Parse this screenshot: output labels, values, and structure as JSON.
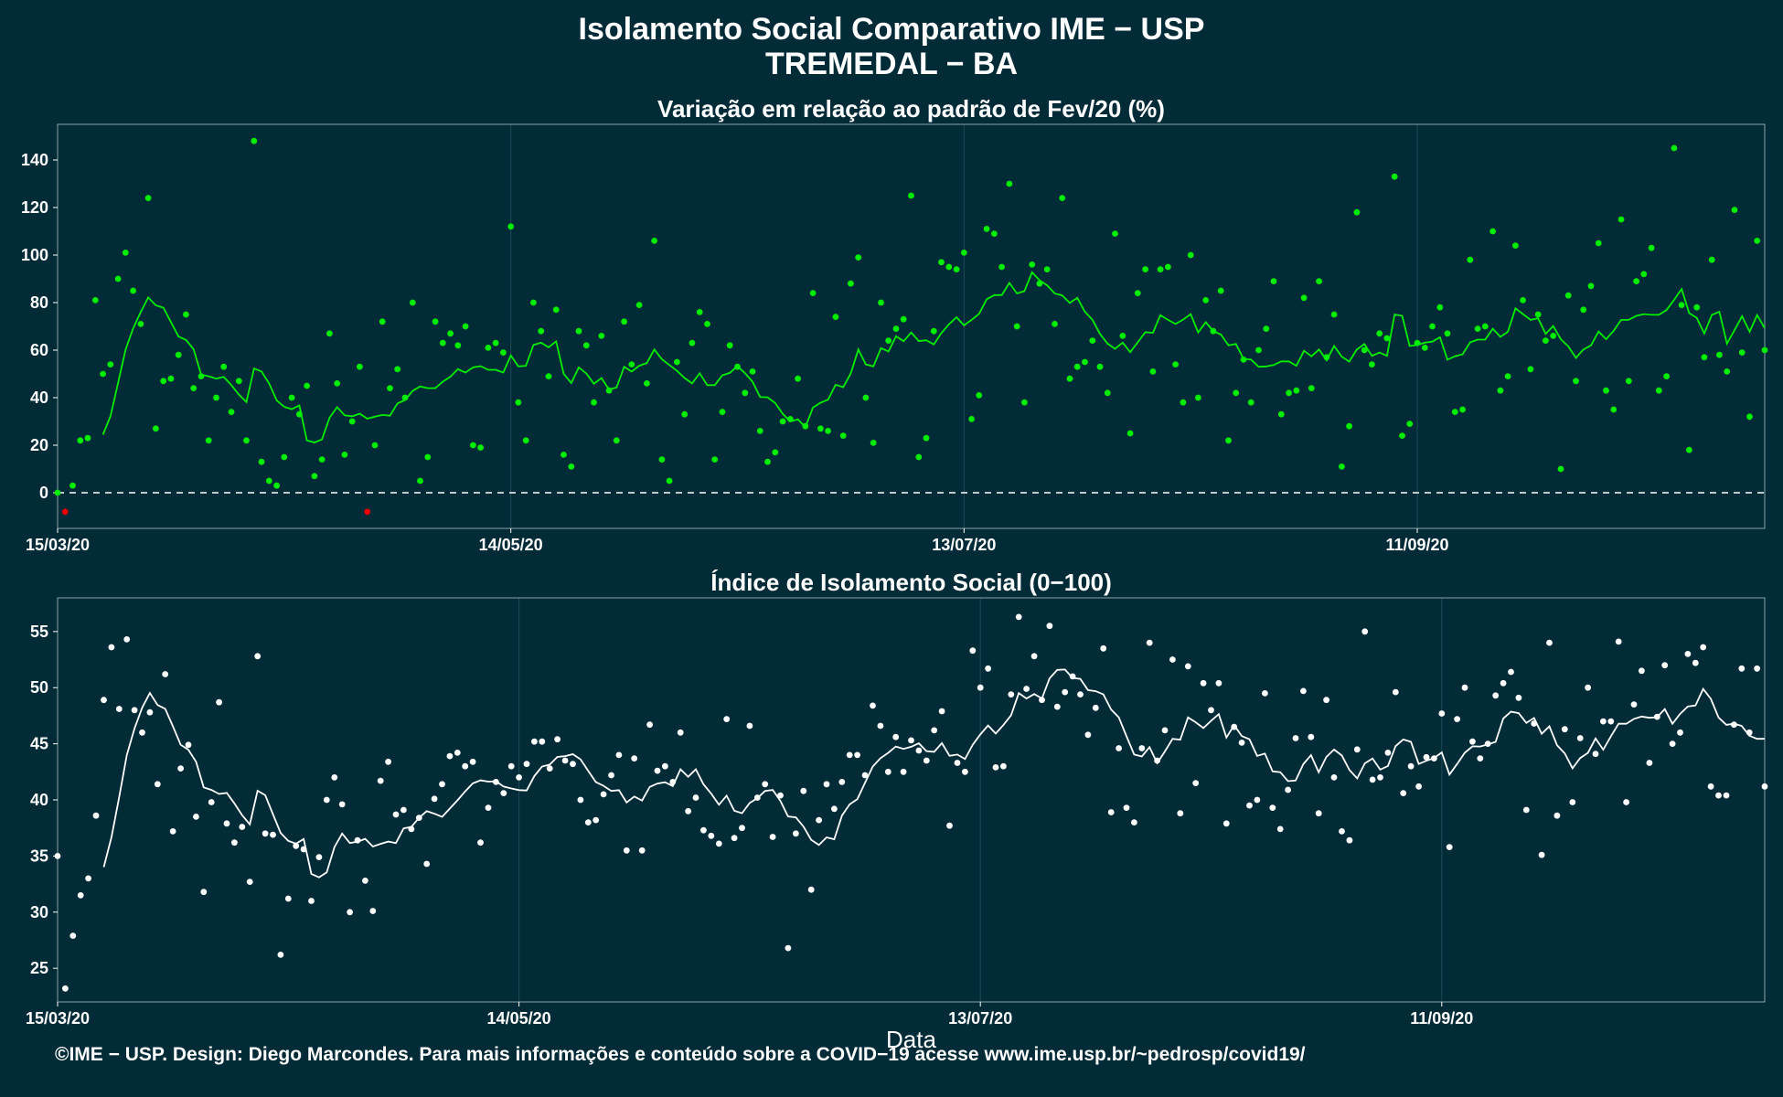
{
  "header": {
    "title": "Isolamento Social Comparativo IME − USP",
    "subtitle": "TREMEDAL − BA"
  },
  "footer": {
    "text": "©IME − USP. Design: Diego Marcondes. Para mais informações e conteúdo sobre a COVID−19 acesse www.ime.usp.br/~pedrosp/covid19/"
  },
  "colors": {
    "background": "#022b38",
    "variation_points": "#00ee00",
    "negative_points": "#ee0000",
    "index_points": "#ffffff"
  },
  "chart_data": [
    {
      "type": "scatter",
      "title": "Variação em relação ao padrão de Fev/20 (%)",
      "xlabel": "",
      "ylabel": "",
      "x_start": "15/03/20",
      "x_ticks": [
        "15/03/20",
        "14/05/20",
        "13/07/20",
        "11/09/20"
      ],
      "x_tick_offsets_days": [
        0,
        60,
        120,
        180
      ],
      "ylim": [
        -15,
        155
      ],
      "y_ticks": [
        0,
        20,
        40,
        60,
        80,
        100,
        120,
        140
      ],
      "reference_line": 0,
      "grid": "vertical",
      "series": [
        {
          "points": [
            0,
            -8,
            3,
            22,
            23,
            81,
            50,
            54,
            90,
            101,
            85,
            71,
            124,
            27,
            47,
            48,
            58,
            75,
            44,
            49,
            22,
            40,
            53,
            34,
            47,
            22,
            148,
            13,
            5,
            3,
            15,
            40,
            33,
            45,
            7,
            14,
            67,
            46,
            16,
            30,
            53,
            -8,
            20,
            72,
            44,
            52,
            40,
            80,
            5,
            15,
            72,
            63,
            67,
            62,
            70,
            20,
            19,
            61,
            63,
            59,
            112,
            38,
            22,
            80,
            68,
            49,
            77,
            16,
            11,
            68,
            62,
            38,
            66,
            43,
            22,
            72,
            54,
            79,
            46,
            106,
            14,
            5,
            55,
            33,
            63,
            76,
            71,
            14,
            34,
            62,
            53,
            42,
            51,
            26,
            13,
            17,
            30,
            31,
            48,
            28,
            84,
            27,
            26,
            74,
            24,
            88,
            99,
            40,
            21,
            80,
            64,
            69,
            73,
            125,
            15,
            23,
            68,
            97,
            95,
            94,
            101,
            31,
            41,
            111,
            109,
            95,
            130,
            70,
            38,
            96,
            88,
            94,
            71,
            124,
            48,
            53,
            55,
            64,
            53,
            42,
            109,
            66,
            25,
            84,
            94,
            51,
            94,
            95,
            54,
            38,
            100,
            40,
            81,
            68,
            85,
            22,
            42,
            56,
            38,
            60,
            69,
            89,
            33,
            42,
            43,
            82,
            44,
            89,
            57,
            75,
            11,
            28,
            118,
            60,
            54,
            67,
            65,
            133,
            24,
            29,
            63,
            61,
            70,
            78,
            67,
            34,
            35,
            98,
            69,
            70,
            110,
            43,
            49,
            104,
            81,
            52,
            75,
            64,
            66,
            10,
            83,
            47,
            77,
            87,
            105,
            43,
            35,
            115,
            47,
            89,
            92,
            103,
            43,
            49,
            145,
            79,
            18,
            78,
            57,
            98,
            58,
            51,
            119,
            59,
            32,
            106,
            60
          ]
        }
      ]
    },
    {
      "type": "scatter",
      "title": "Índice de Isolamento Social (0−100)",
      "xlabel": "Data",
      "ylabel": "",
      "x_start": "15/03/20",
      "x_ticks": [
        "15/03/20",
        "14/05/20",
        "13/07/20",
        "11/09/20"
      ],
      "x_tick_offsets_days": [
        0,
        60,
        120,
        180
      ],
      "ylim": [
        22,
        58
      ],
      "y_ticks": [
        25,
        30,
        35,
        40,
        45,
        50,
        55
      ],
      "grid": "vertical",
      "series": [
        {
          "points": [
            35,
            23.2,
            27.9,
            31.5,
            33,
            38.6,
            48.9,
            53.6,
            48.1,
            54.3,
            48,
            46,
            47.8,
            41.4,
            51.2,
            37.2,
            42.8,
            44.9,
            38.5,
            31.8,
            39.8,
            48.7,
            37.9,
            36.2,
            37.6,
            32.7,
            52.8,
            37,
            36.9,
            26.2,
            31.2,
            35.9,
            35.6,
            31,
            34.9,
            40,
            42,
            39.6,
            30,
            36.4,
            32.8,
            30.1,
            41.7,
            43.4,
            38.7,
            39.1,
            37.4,
            38.4,
            34.3,
            40.1,
            41.4,
            43.9,
            44.2,
            43,
            43.4,
            36.2,
            39.3,
            41.6,
            40.6,
            43,
            42,
            43.2,
            45.2,
            45.2,
            42.8,
            45.4,
            43.5,
            43.2,
            40,
            38,
            38.2,
            40.5,
            42.2,
            44,
            35.5,
            43.7,
            35.5,
            46.7,
            42.6,
            43,
            41.6,
            46,
            39,
            40.2,
            37.3,
            36.8,
            36.1,
            47.2,
            36.6,
            37.5,
            46.6,
            40.2,
            41.4,
            36.7,
            40.4,
            26.8,
            37,
            40.8,
            32,
            38.2,
            41.4,
            39.2,
            41.6,
            44,
            44,
            42.2,
            48.4,
            46.6,
            42.5,
            45.6,
            42.5,
            45.3,
            44.4,
            43.5,
            46.2,
            47.9,
            37.7,
            43.3,
            42.5,
            53.3,
            50,
            51.7,
            42.9,
            43,
            49.4,
            56.3,
            49.9,
            52.8,
            48.9,
            55.5,
            48.3,
            49.6,
            51,
            49.4,
            45.8,
            48.2,
            53.5,
            38.9,
            44.6,
            39.3,
            38,
            44.6,
            54,
            43.5,
            46.2,
            52.5,
            38.8,
            51.9,
            41.5,
            50.4,
            48,
            50.4,
            37.9,
            46.5,
            45.1,
            39.5,
            40,
            49.5,
            39.3,
            37.4,
            40.9,
            45.5,
            49.7,
            45.6,
            38.8,
            48.9,
            42,
            37.2,
            36.4,
            44.5,
            55,
            41.8,
            42,
            44.2,
            49.6,
            40.6,
            43,
            41.2,
            43.8,
            43.7,
            47.7,
            35.8,
            47.2,
            50,
            45.2,
            43.7,
            45,
            49.3,
            50.4,
            51.4,
            49.1,
            39.1,
            46.8,
            35.1,
            54,
            38.6,
            46.3,
            39.8,
            45.5,
            50,
            44.1,
            47,
            47,
            54.1,
            39.8,
            48.5,
            51.5,
            43.3,
            47.4,
            52,
            45,
            46,
            53,
            52.2,
            53.6,
            41.2,
            40.4,
            40.4,
            46.7,
            51.7,
            46,
            51.7,
            41.2
          ]
        }
      ]
    }
  ]
}
